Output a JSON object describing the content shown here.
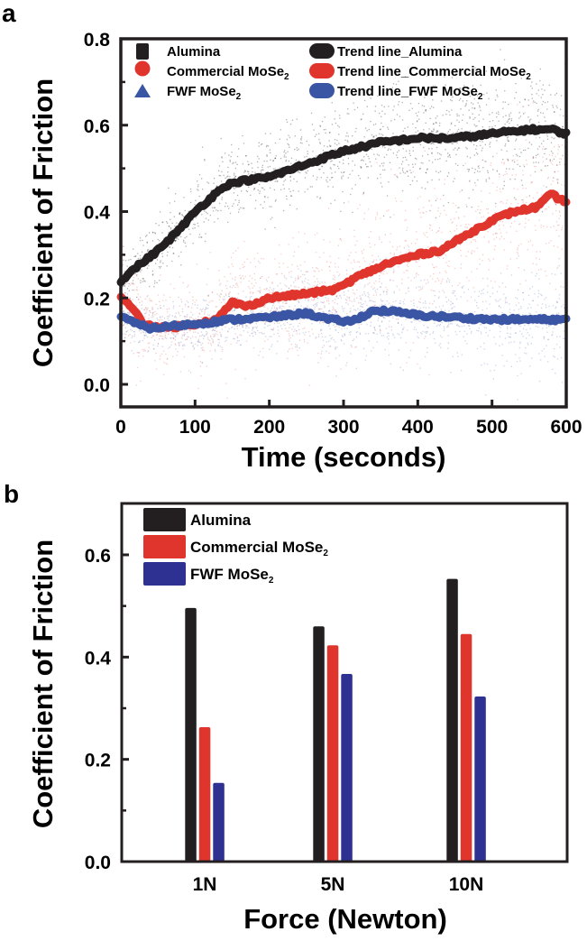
{
  "panel_labels": {
    "a": "a",
    "b": "b"
  },
  "colors": {
    "alumina": "#231f20",
    "commercial": "#e0352d",
    "fwf": "#3b55a5",
    "fwf_bar": "#2e3092",
    "axis": "#231f20"
  },
  "chart_data": [
    {
      "type": "scatter",
      "panel": "a",
      "title": "",
      "xlabel": "Time (seconds)",
      "ylabel": "Coefficient of Friction",
      "xlim": [
        0,
        600
      ],
      "ylim": [
        0,
        0.8
      ],
      "xticks": [
        "0",
        "100",
        "200",
        "300",
        "400",
        "500",
        "600"
      ],
      "yticks": [
        "0.0",
        "0.2",
        "0.4",
        "0.6",
        "0.8"
      ],
      "legend": {
        "placement": "top-left",
        "entries": [
          {
            "label": "Alumina",
            "marker": "square",
            "series": "alumina"
          },
          {
            "label": "Commercial MoSe",
            "sub": "2",
            "marker": "circle",
            "series": "commercial"
          },
          {
            "label": "FWF MoSe",
            "sub": "2",
            "marker": "triangle",
            "series": "fwf"
          },
          {
            "label": "Trend line_Alumina",
            "marker": "line",
            "series": "alumina"
          },
          {
            "label": "Trend line_Commercial MoSe",
            "sub": "2",
            "marker": "line",
            "series": "commercial"
          },
          {
            "label": "Trend line_FWF MoSe",
            "sub": "2",
            "marker": "line",
            "series": "fwf"
          }
        ]
      },
      "trend_lines": [
        {
          "name": "Trend line_Alumina",
          "series": "alumina",
          "x": [
            0,
            20,
            50,
            80,
            100,
            120,
            140,
            160,
            200,
            250,
            300,
            350,
            400,
            450,
            500,
            550,
            580,
            600
          ],
          "y": [
            0.24,
            0.27,
            0.31,
            0.36,
            0.4,
            0.43,
            0.46,
            0.47,
            0.48,
            0.51,
            0.54,
            0.56,
            0.57,
            0.57,
            0.58,
            0.59,
            0.59,
            0.58
          ],
          "spread": 0.06
        },
        {
          "name": "Trend line_Commercial MoSe2",
          "series": "commercial",
          "x": [
            0,
            10,
            30,
            60,
            100,
            130,
            150,
            170,
            200,
            250,
            290,
            320,
            360,
            400,
            430,
            470,
            500,
            530,
            560,
            580,
            600
          ],
          "y": [
            0.2,
            0.19,
            0.14,
            0.13,
            0.14,
            0.15,
            0.19,
            0.18,
            0.2,
            0.21,
            0.22,
            0.25,
            0.28,
            0.3,
            0.31,
            0.35,
            0.38,
            0.4,
            0.41,
            0.44,
            0.42
          ],
          "spread": 0.08
        },
        {
          "name": "Trend line_FWF MoSe2",
          "series": "fwf",
          "x": [
            0,
            20,
            40,
            100,
            150,
            200,
            250,
            280,
            310,
            340,
            360,
            400,
            450,
            500,
            550,
            600
          ],
          "y": [
            0.16,
            0.14,
            0.13,
            0.14,
            0.15,
            0.155,
            0.165,
            0.15,
            0.145,
            0.17,
            0.17,
            0.16,
            0.155,
            0.15,
            0.15,
            0.15
          ],
          "spread": 0.05
        }
      ],
      "grid": false
    },
    {
      "type": "bar",
      "panel": "b",
      "title": "",
      "xlabel": "Force (Newton)",
      "ylabel": "Coefficient of Friction",
      "categories": [
        "1N",
        "5N",
        "10N"
      ],
      "ylim": [
        0,
        0.7
      ],
      "yticks": [
        "0.0",
        "0.2",
        "0.4",
        "0.6"
      ],
      "legend": {
        "placement": "top-left",
        "entries": [
          {
            "label": "Alumina",
            "series": "alumina"
          },
          {
            "label": "Commercial MoSe",
            "sub": "2",
            "series": "commercial"
          },
          {
            "label": "FWF MoSe",
            "sub": "2",
            "series": "fwf_bar"
          }
        ]
      },
      "series": [
        {
          "name": "Alumina",
          "color_key": "alumina",
          "values": [
            0.496,
            0.46,
            0.553
          ]
        },
        {
          "name": "Commercial MoSe2",
          "color_key": "commercial",
          "values": [
            0.263,
            0.423,
            0.445
          ]
        },
        {
          "name": "FWF MoSe2",
          "color_key": "fwf_bar",
          "values": [
            0.154,
            0.367,
            0.323
          ]
        }
      ],
      "grid": false
    }
  ]
}
